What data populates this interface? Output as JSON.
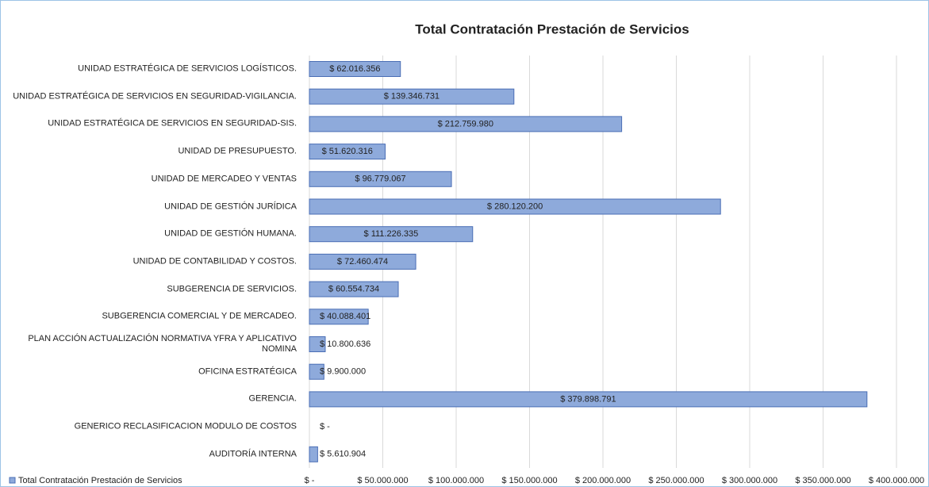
{
  "chart_data": {
    "type": "barh",
    "title": "Total Contratación Prestación de Servicios",
    "categories": [
      "UNIDAD ESTRATÉGICA DE SERVICIOS LOGÍSTICOS.",
      "UNIDAD ESTRATÉGICA DE SERVICIOS EN SEGURIDAD-VIGILANCIA.",
      "UNIDAD ESTRATÉGICA DE SERVICIOS EN SEGURIDAD-SIS.",
      "UNIDAD DE PRESUPUESTO.",
      "UNIDAD DE MERCADEO Y  VENTAS",
      "UNIDAD DE GESTIÓN JURÍDICA",
      "UNIDAD DE GESTIÓN HUMANA.",
      "UNIDAD DE CONTABILIDAD Y COSTOS.",
      "SUBGERENCIA DE SERVICIOS.",
      "SUBGERENCIA COMERCIAL Y DE MERCADEO.",
      "PLAN ACCIÓN ACTUALIZACIÓN NORMATIVA YFRA Y APLICATIVO NOMINA",
      "OFICINA ESTRATÉGICA",
      "GERENCIA.",
      "GENERICO RECLASIFICACION MODULO DE COSTOS",
      "AUDITORÍA INTERNA"
    ],
    "series": [
      {
        "name": "Total Contratación Prestación de Servicios",
        "color": "#8eaadb",
        "values": [
          62016356,
          139346731,
          212759980,
          51620316,
          96779067,
          280120200,
          111226335,
          72460474,
          60554734,
          40088401,
          10800636,
          9900000,
          379898791,
          0,
          5610904
        ],
        "value_labels": [
          "$ 62.016.356",
          "$ 139.346.731",
          "$ 212.759.980",
          "$ 51.620.316",
          "$ 96.779.067",
          "$ 280.120.200",
          "$ 111.226.335",
          "$ 72.460.474",
          "$ 60.554.734",
          "$ 40.088.401",
          "$ 10.800.636",
          "$ 9.900.000",
          "$ 379.898.791",
          "$ -",
          "$ 5.610.904"
        ]
      }
    ],
    "xlim": [
      0,
      400000000
    ],
    "xticks": [
      {
        "value": 0,
        "label": "$ -"
      },
      {
        "value": 50000000,
        "label": "$ 50.000.000"
      },
      {
        "value": 100000000,
        "label": "$ 100.000.000"
      },
      {
        "value": 150000000,
        "label": "$ 150.000.000"
      },
      {
        "value": 200000000,
        "label": "$ 200.000.000"
      },
      {
        "value": 250000000,
        "label": "$ 250.000.000"
      },
      {
        "value": 300000000,
        "label": "$ 300.000.000"
      },
      {
        "value": 350000000,
        "label": "$ 350.000.000"
      },
      {
        "value": 400000000,
        "label": "$ 400.000.000"
      }
    ],
    "grid": true,
    "legend": "bottom-left"
  }
}
